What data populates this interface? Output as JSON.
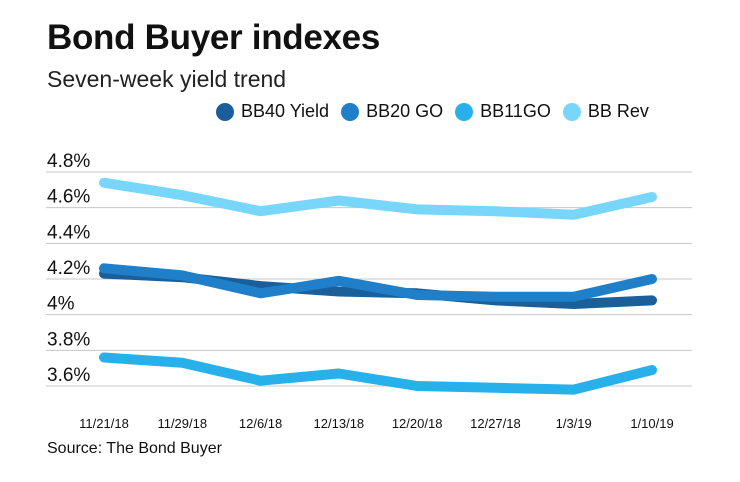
{
  "chart_data": {
    "type": "line",
    "title": "Bond Buyer indexes",
    "subtitle": "Seven-week yield trend",
    "source": "Source: The Bond Buyer",
    "categories": [
      "11/21/18",
      "11/29/18",
      "12/6/18",
      "12/13/18",
      "12/20/18",
      "12/27/18",
      "1/3/19",
      "1/10/19"
    ],
    "ylim": [
      3.5,
      4.8
    ],
    "yticks": [
      {
        "value": 4.8,
        "label": "4.8%"
      },
      {
        "value": 4.6,
        "label": "4.6%"
      },
      {
        "value": 4.4,
        "label": "4.4%"
      },
      {
        "value": 4.2,
        "label": "4.2%"
      },
      {
        "value": 4.0,
        "label": "4%"
      },
      {
        "value": 3.8,
        "label": "3.8%"
      },
      {
        "value": 3.6,
        "label": "3.6%"
      }
    ],
    "legend_position": "top-right",
    "series": [
      {
        "name": "BB40 Yield",
        "color": "#1a5f99",
        "values": [
          4.23,
          4.21,
          4.16,
          4.13,
          4.12,
          4.08,
          4.06,
          4.08
        ]
      },
      {
        "name": "BB20 GO",
        "color": "#1f7fc8",
        "values": [
          4.26,
          4.22,
          4.12,
          4.19,
          4.11,
          4.1,
          4.1,
          4.2
        ]
      },
      {
        "name": "BB11GO",
        "color": "#27b0ea",
        "values": [
          3.76,
          3.73,
          3.63,
          3.67,
          3.6,
          3.59,
          3.58,
          3.69
        ]
      },
      {
        "name": "BB Rev",
        "color": "#79d6fb",
        "values": [
          4.74,
          4.67,
          4.58,
          4.64,
          4.59,
          4.58,
          4.56,
          4.66
        ]
      }
    ]
  }
}
